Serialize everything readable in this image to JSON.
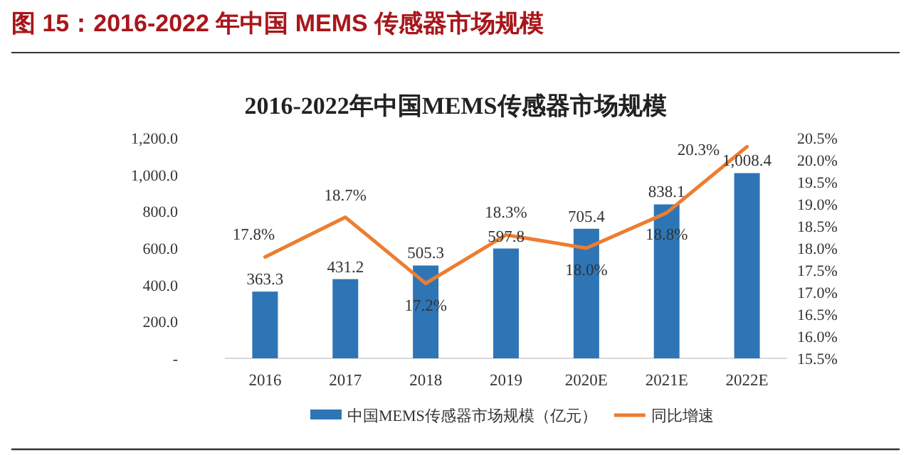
{
  "chart_data": {
    "type": "bar",
    "title": "2016-2022年中国MEMS传感器市场规模",
    "annotations": [
      "图 15：2016-2022 年中国 MEMS 传感器市场规模"
    ],
    "categories": [
      "2016",
      "2017",
      "2018",
      "2019",
      "2020E",
      "2021E",
      "2022E"
    ],
    "series": [
      {
        "name": "中国MEMS传感器市场规模（亿元）",
        "color": "#2e75b6",
        "values": [
          363.3,
          431.2,
          505.3,
          597.8,
          705.4,
          838.1,
          1008.4
        ],
        "value_labels": [
          "363.3",
          "431.2",
          "505.3",
          "597.8",
          "705.4",
          "838.1",
          "1,008.4"
        ]
      },
      {
        "name": "同比增速",
        "type": "line",
        "axis": "y2",
        "color": "#ed7d31",
        "values": [
          17.8,
          18.7,
          17.2,
          18.3,
          18.0,
          18.8,
          20.3
        ],
        "value_labels": [
          "17.8%",
          "18.7%",
          "17.2%",
          "18.3%",
          "18.0%",
          "18.8%",
          "20.3%"
        ]
      }
    ],
    "ylim": [
      0,
      1200
    ],
    "yticks": [
      {
        "value": 0,
        "label": "-"
      },
      {
        "value": 200,
        "label": "200.0"
      },
      {
        "value": 400,
        "label": "400.0"
      },
      {
        "value": 600,
        "label": "600.0"
      },
      {
        "value": 800,
        "label": "800.0"
      },
      {
        "value": 1000,
        "label": "1,000.0"
      },
      {
        "value": 1200,
        "label": "1,200.0"
      }
    ],
    "y2lim": [
      15.5,
      20.5
    ],
    "y2ticks": [
      {
        "value": 15.5,
        "label": "15.5%"
      },
      {
        "value": 16.0,
        "label": "16.0%"
      },
      {
        "value": 16.5,
        "label": "16.5%"
      },
      {
        "value": 17.0,
        "label": "17.0%"
      },
      {
        "value": 17.5,
        "label": "17.5%"
      },
      {
        "value": 18.0,
        "label": "18.0%"
      },
      {
        "value": 18.5,
        "label": "18.5%"
      },
      {
        "value": 19.0,
        "label": "19.0%"
      },
      {
        "value": 19.5,
        "label": "19.5%"
      },
      {
        "value": 20.0,
        "label": "20.0%"
      },
      {
        "value": 20.5,
        "label": "20.5%"
      }
    ],
    "grid": false,
    "legend": "bottom"
  }
}
